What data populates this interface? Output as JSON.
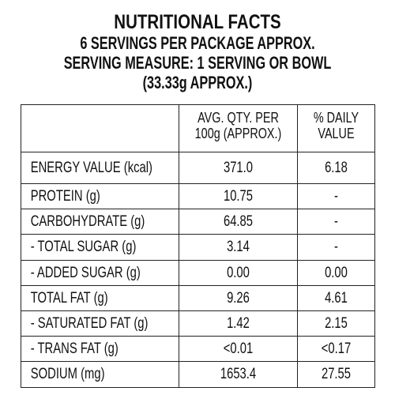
{
  "header": {
    "title": "NUTRITIONAL FACTS",
    "line1": "6 SERVINGS PER PACKAGE APPROX.",
    "line2": "SERVING MEASURE: 1 SERVING OR BOWL",
    "line3": "(33.33g APPROX.)"
  },
  "table": {
    "col_name_header": "",
    "col_qty_header_1": "AVG. QTY. PER",
    "col_qty_header_2": "100g (APPROX.)",
    "col_dv_header_1": "% DAILY",
    "col_dv_header_2": "VALUE",
    "rows": [
      {
        "name": "ENERGY VALUE (kcal)",
        "qty": "371.0",
        "dv": "6.18"
      },
      {
        "name": "PROTEIN (g)",
        "qty": "10.75",
        "dv": "-"
      },
      {
        "name": "CARBOHYDRATE (g)",
        "qty": "64.85",
        "dv": "-"
      },
      {
        "name": "- TOTAL SUGAR (g)",
        "qty": "3.14",
        "dv": "-"
      },
      {
        "name": "- ADDED SUGAR (g)",
        "qty": "0.00",
        "dv": "0.00"
      },
      {
        "name": "TOTAL FAT (g)",
        "qty": "9.26",
        "dv": "4.61"
      },
      {
        "name": "- SATURATED FAT (g)",
        "qty": "1.42",
        "dv": "2.15"
      },
      {
        "name": "- TRANS FAT (g)",
        "qty": "<0.01",
        "dv": "<0.17"
      },
      {
        "name": "SODIUM (mg)",
        "qty": "1653.4",
        "dv": "27.55"
      }
    ]
  }
}
